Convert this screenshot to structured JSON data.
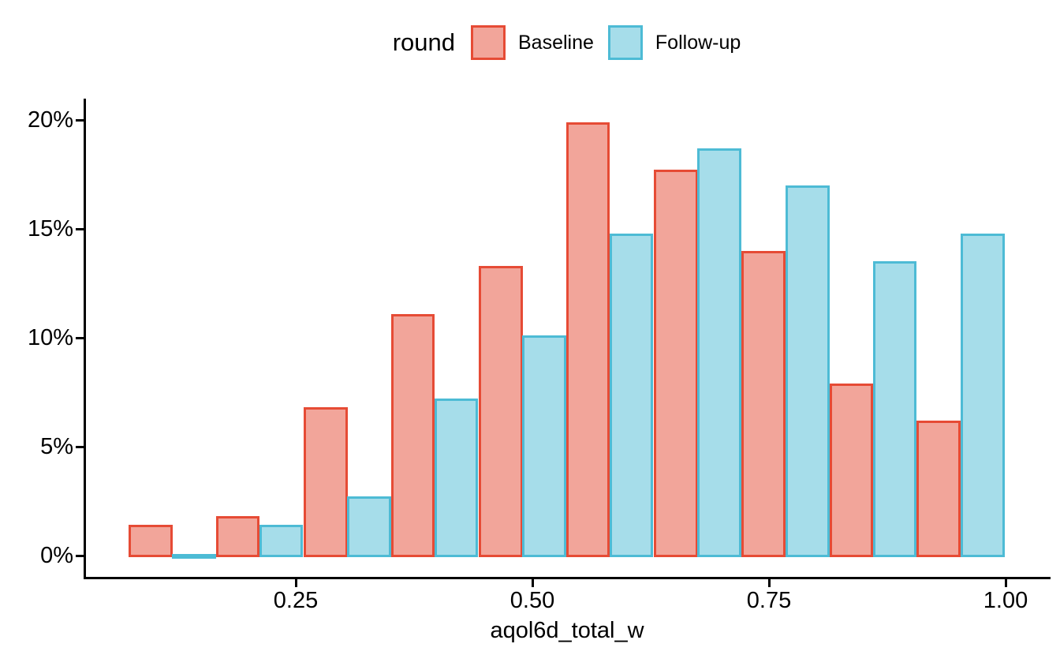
{
  "legend": {
    "title": "round",
    "items": [
      {
        "label": "Baseline"
      },
      {
        "label": "Follow-up"
      }
    ]
  },
  "chart_data": {
    "type": "bar",
    "subtype": "dodged-histogram",
    "title": "",
    "xlabel": "aqol6d_total_w",
    "ylabel": "",
    "legend_title": "round",
    "legend_position": "top",
    "grid": false,
    "background": "#ffffff",
    "axis_color": "#000000",
    "text_color": "#000000",
    "xlim": [
      0.027,
      1.045
    ],
    "ylim": [
      0,
      21
    ],
    "x_ticks": {
      "values": [
        0.25,
        0.5,
        0.75,
        1.0
      ],
      "labels": [
        "0.25",
        "0.50",
        "0.75",
        "1.00"
      ]
    },
    "y_ticks": {
      "values": [
        0,
        5,
        10,
        15,
        20
      ],
      "labels": [
        "0%",
        "5%",
        "10%",
        "15%",
        "20%"
      ]
    },
    "bin_edges": [
      0.073,
      0.166,
      0.258,
      0.351,
      0.443,
      0.536,
      0.628,
      0.721,
      0.814,
      0.906,
      0.999
    ],
    "series": [
      {
        "name": "Baseline",
        "stroke": "#E64B35",
        "fill": "#F2A59A",
        "values_pct": [
          1.4,
          1.8,
          6.8,
          11.1,
          13.3,
          19.9,
          17.7,
          14.0,
          7.9,
          6.2
        ]
      },
      {
        "name": "Follow-up",
        "stroke": "#4DBBD5",
        "fill": "#A6DDEA",
        "values_pct": [
          0.05,
          1.4,
          2.7,
          7.2,
          10.1,
          14.8,
          18.7,
          17.0,
          13.5,
          14.8
        ]
      }
    ]
  }
}
